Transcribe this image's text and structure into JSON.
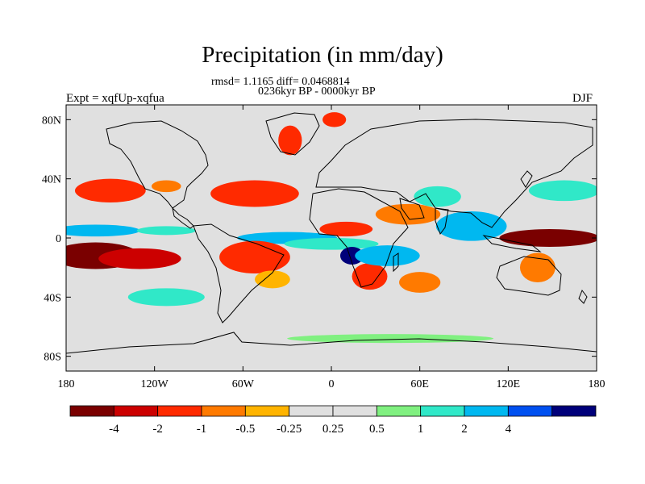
{
  "chart_data": {
    "type": "heatmap",
    "title": "Precipitation (in mm/day)",
    "stats_line": "rmsd= 1.1165 diff= 0.0468814",
    "period_line": "0236kyr BP - 0000kyr BP",
    "left_label": "Expt = xqfUp-xqfua",
    "right_label": "DJF",
    "x_ticks": [
      "180",
      "120W",
      "60W",
      "0",
      "60E",
      "120E",
      "180"
    ],
    "y_ticks": [
      "80N",
      "40N",
      "0",
      "40S",
      "80S"
    ],
    "x_range": [
      -180,
      180
    ],
    "y_range": [
      -90,
      90
    ],
    "colorbar": {
      "colors": [
        "#7a0000",
        "#cc0000",
        "#ff2a00",
        "#ff7a00",
        "#ffb400",
        "#e0e0e0",
        "#e0e0e0",
        "#80f080",
        "#30e8c8",
        "#00b8f0",
        "#0050f0",
        "#00007a"
      ],
      "labels": [
        "-4",
        "-2",
        "-1",
        "-0.5",
        "-0.25",
        "0.25",
        "0.5",
        "1",
        "2",
        "4"
      ]
    },
    "anomaly_regions": [
      {
        "lon": -160,
        "lat": -12,
        "rx": 30,
        "ry": 9,
        "level": 0
      },
      {
        "lon": -130,
        "lat": -14,
        "rx": 28,
        "ry": 7,
        "level": 1
      },
      {
        "lon": -150,
        "lat": 32,
        "rx": 24,
        "ry": 8,
        "level": 2
      },
      {
        "lon": -112,
        "lat": 35,
        "rx": 10,
        "ry": 4,
        "level": 3
      },
      {
        "lon": -160,
        "lat": 5,
        "rx": 30,
        "ry": 4,
        "level": 9
      },
      {
        "lon": -112,
        "lat": 5,
        "rx": 20,
        "ry": 3,
        "level": 8
      },
      {
        "lon": -30,
        "lat": 0,
        "rx": 34,
        "ry": 4,
        "level": 9
      },
      {
        "lon": -52,
        "lat": -13,
        "rx": 24,
        "ry": 11,
        "level": 2
      },
      {
        "lon": -40,
        "lat": -28,
        "rx": 12,
        "ry": 6,
        "level": 4
      },
      {
        "lon": -52,
        "lat": 30,
        "rx": 30,
        "ry": 9,
        "level": 2
      },
      {
        "lon": -28,
        "lat": 66,
        "rx": 8,
        "ry": 10,
        "level": 2
      },
      {
        "lon": 2,
        "lat": 80,
        "rx": 8,
        "ry": 5,
        "level": 2
      },
      {
        "lon": 10,
        "lat": 6,
        "rx": 18,
        "ry": 5,
        "level": 2
      },
      {
        "lon": 0,
        "lat": -4,
        "rx": 32,
        "ry": 4,
        "level": 8
      },
      {
        "lon": 14,
        "lat": -12,
        "rx": 8,
        "ry": 6,
        "level": 11
      },
      {
        "lon": 26,
        "lat": -26,
        "rx": 12,
        "ry": 9,
        "level": 2
      },
      {
        "lon": 38,
        "lat": -12,
        "rx": 22,
        "ry": 7,
        "level": 9
      },
      {
        "lon": 60,
        "lat": -30,
        "rx": 14,
        "ry": 7,
        "level": 3
      },
      {
        "lon": 52,
        "lat": 16,
        "rx": 22,
        "ry": 7,
        "level": 3
      },
      {
        "lon": 95,
        "lat": 8,
        "rx": 24,
        "ry": 10,
        "level": 9
      },
      {
        "lon": 148,
        "lat": 0,
        "rx": 34,
        "ry": 6,
        "level": 0
      },
      {
        "lon": 158,
        "lat": 32,
        "rx": 24,
        "ry": 7,
        "level": 8
      },
      {
        "lon": 140,
        "lat": -20,
        "rx": 12,
        "ry": 10,
        "level": 3
      },
      {
        "lon": 72,
        "lat": 28,
        "rx": 16,
        "ry": 7,
        "level": 8
      },
      {
        "lon": -112,
        "lat": -40,
        "rx": 26,
        "ry": 6,
        "level": 8
      },
      {
        "lon": 40,
        "lat": -68,
        "rx": 70,
        "ry": 3,
        "level": 7
      }
    ]
  }
}
